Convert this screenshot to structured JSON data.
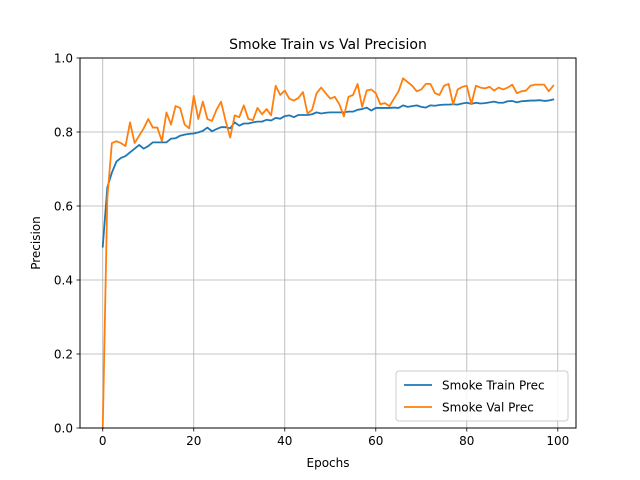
{
  "chart_data": {
    "type": "line",
    "title": "Smoke Train vs Val Precision",
    "xlabel": "Epochs",
    "ylabel": "Precision",
    "xlim": [
      -5,
      104
    ],
    "ylim": [
      0.0,
      1.0
    ],
    "xticks": [
      0,
      20,
      40,
      60,
      80,
      100
    ],
    "yticks": [
      0.0,
      0.2,
      0.4,
      0.6,
      0.8,
      1.0
    ],
    "xtick_labels": [
      "0",
      "20",
      "40",
      "60",
      "80",
      "100"
    ],
    "ytick_labels": [
      "0.0",
      "0.2",
      "0.4",
      "0.6",
      "0.8",
      "1.0"
    ],
    "grid": true,
    "legend_position": "lower-right",
    "x": [
      0,
      1,
      2,
      3,
      4,
      5,
      6,
      7,
      8,
      9,
      10,
      11,
      12,
      13,
      14,
      15,
      16,
      17,
      18,
      19,
      20,
      21,
      22,
      23,
      24,
      25,
      26,
      27,
      28,
      29,
      30,
      31,
      32,
      33,
      34,
      35,
      36,
      37,
      38,
      39,
      40,
      41,
      42,
      43,
      44,
      45,
      46,
      47,
      48,
      49,
      50,
      51,
      52,
      53,
      54,
      55,
      56,
      57,
      58,
      59,
      60,
      61,
      62,
      63,
      64,
      65,
      66,
      67,
      68,
      69,
      70,
      71,
      72,
      73,
      74,
      75,
      76,
      77,
      78,
      79,
      80,
      81,
      82,
      83,
      84,
      85,
      86,
      87,
      88,
      89,
      90,
      91,
      92,
      93,
      94,
      95,
      96,
      97,
      98,
      99
    ],
    "series": [
      {
        "name": "Smoke Train Prec",
        "color": "#1f77b4",
        "values": [
          0.49,
          0.65,
          0.69,
          0.72,
          0.73,
          0.735,
          0.745,
          0.755,
          0.765,
          0.755,
          0.762,
          0.772,
          0.772,
          0.772,
          0.772,
          0.782,
          0.783,
          0.79,
          0.793,
          0.795,
          0.796,
          0.799,
          0.803,
          0.812,
          0.802,
          0.808,
          0.813,
          0.813,
          0.81,
          0.826,
          0.817,
          0.823,
          0.823,
          0.826,
          0.828,
          0.828,
          0.833,
          0.831,
          0.838,
          0.836,
          0.843,
          0.845,
          0.84,
          0.846,
          0.846,
          0.846,
          0.848,
          0.853,
          0.85,
          0.852,
          0.853,
          0.853,
          0.853,
          0.853,
          0.855,
          0.855,
          0.86,
          0.862,
          0.866,
          0.858,
          0.865,
          0.865,
          0.865,
          0.865,
          0.866,
          0.865,
          0.872,
          0.868,
          0.87,
          0.872,
          0.868,
          0.866,
          0.872,
          0.871,
          0.873,
          0.874,
          0.874,
          0.875,
          0.874,
          0.877,
          0.879,
          0.876,
          0.879,
          0.877,
          0.878,
          0.88,
          0.882,
          0.879,
          0.879,
          0.883,
          0.884,
          0.88,
          0.883,
          0.884,
          0.885,
          0.885,
          0.886,
          0.884,
          0.885,
          0.888
        ]
      },
      {
        "name": "Smoke Val Prec",
        "color": "#ff7f0e",
        "values": [
          0.0,
          0.62,
          0.77,
          0.775,
          0.77,
          0.762,
          0.826,
          0.77,
          0.79,
          0.81,
          0.835,
          0.812,
          0.812,
          0.775,
          0.853,
          0.82,
          0.87,
          0.865,
          0.82,
          0.81,
          0.898,
          0.835,
          0.882,
          0.835,
          0.83,
          0.86,
          0.882,
          0.83,
          0.785,
          0.845,
          0.84,
          0.872,
          0.835,
          0.832,
          0.865,
          0.848,
          0.862,
          0.845,
          0.925,
          0.9,
          0.912,
          0.89,
          0.885,
          0.892,
          0.908,
          0.85,
          0.86,
          0.905,
          0.92,
          0.905,
          0.89,
          0.895,
          0.875,
          0.842,
          0.895,
          0.9,
          0.93,
          0.868,
          0.912,
          0.915,
          0.905,
          0.875,
          0.878,
          0.87,
          0.89,
          0.91,
          0.945,
          0.935,
          0.925,
          0.91,
          0.915,
          0.93,
          0.93,
          0.905,
          0.9,
          0.925,
          0.93,
          0.875,
          0.915,
          0.922,
          0.925,
          0.875,
          0.925,
          0.92,
          0.918,
          0.922,
          0.912,
          0.92,
          0.915,
          0.92,
          0.928,
          0.905,
          0.91,
          0.912,
          0.925,
          0.928,
          0.928,
          0.928,
          0.91,
          0.925
        ]
      }
    ]
  }
}
